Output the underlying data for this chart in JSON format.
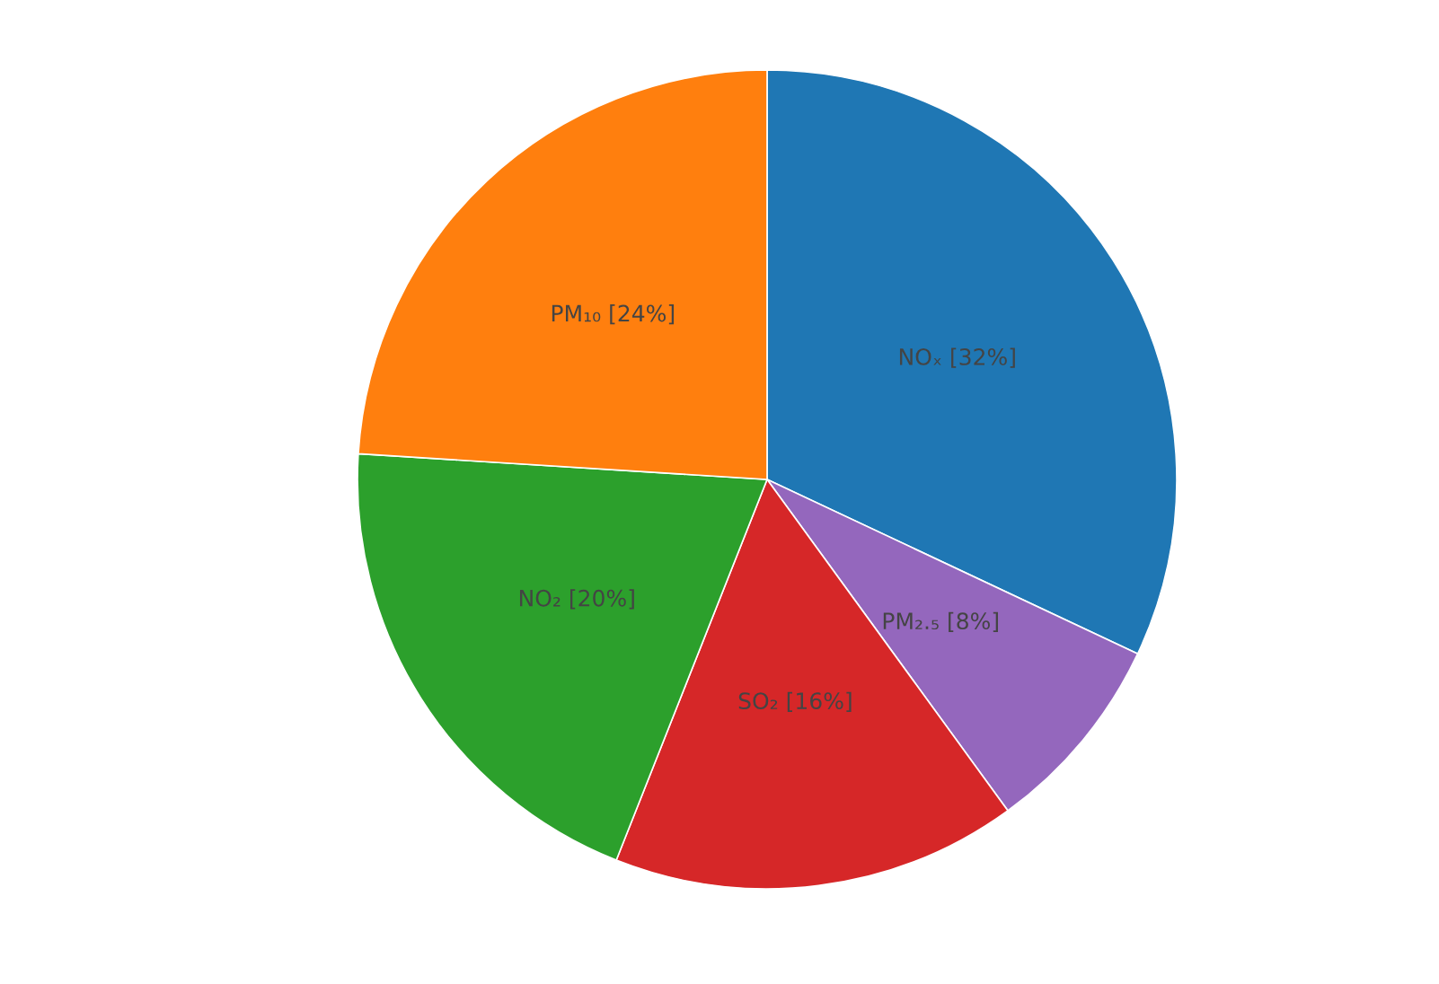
{
  "chart_data": {
    "type": "pie",
    "categories": [
      "NOₓ",
      "PM₂.₅",
      "SO₂",
      "NO₂",
      "PM₁₀"
    ],
    "values": [
      32,
      8,
      16,
      20,
      24
    ],
    "value_labels": [
      "[32%]",
      "[8%]",
      "[16%]",
      "[20%]",
      "[24%]"
    ],
    "colors": [
      "#1f77b4",
      "#9467bd",
      "#d62728",
      "#2ca02c",
      "#ff7f0e"
    ],
    "legend": false
  }
}
